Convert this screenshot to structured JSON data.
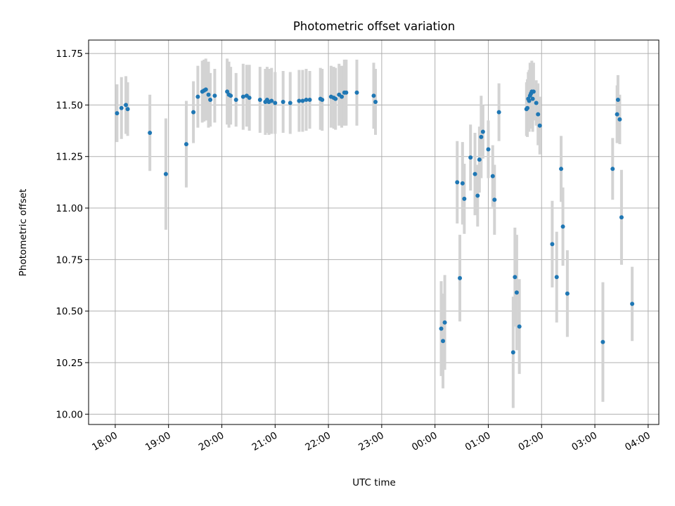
{
  "chart_data": {
    "type": "scatter",
    "title": "Photometric offset variation",
    "xlabel": "UTC time",
    "ylabel": "Photometric offset",
    "ylim": [
      9.95,
      11.815
    ],
    "xlim": [
      "17:30",
      "04:12"
    ],
    "y_ticks": [
      "10.00",
      "10.25",
      "10.50",
      "10.75",
      "11.00",
      "11.25",
      "11.50",
      "11.75"
    ],
    "x_ticks": [
      "18:00",
      "19:00",
      "20:00",
      "21:00",
      "22:00",
      "23:00",
      "00:00",
      "01:00",
      "02:00",
      "03:00",
      "04:00"
    ],
    "grid": true,
    "error_bars": true,
    "colors": {
      "points": "#1f77b4",
      "error_bars": "#d3d3d3",
      "grid": "#b0b0b0"
    },
    "points": [
      {
        "x": "18:02",
        "y": 11.46,
        "err": 0.14
      },
      {
        "x": "18:07",
        "y": 11.485,
        "err": 0.15
      },
      {
        "x": "18:12",
        "y": 11.5,
        "err": 0.14
      },
      {
        "x": "18:14",
        "y": 11.48,
        "err": 0.13
      },
      {
        "x": "18:39",
        "y": 11.365,
        "err": 0.185
      },
      {
        "x": "18:57",
        "y": 11.165,
        "err": 0.27
      },
      {
        "x": "19:20",
        "y": 11.31,
        "err": 0.21
      },
      {
        "x": "19:28",
        "y": 11.465,
        "err": 0.15
      },
      {
        "x": "19:33",
        "y": 11.54,
        "err": 0.15
      },
      {
        "x": "19:38",
        "y": 11.565,
        "err": 0.15
      },
      {
        "x": "19:40",
        "y": 11.57,
        "err": 0.15
      },
      {
        "x": "19:42",
        "y": 11.575,
        "err": 0.15
      },
      {
        "x": "19:45",
        "y": 11.55,
        "err": 0.16
      },
      {
        "x": "19:47",
        "y": 11.525,
        "err": 0.13
      },
      {
        "x": "19:52",
        "y": 11.545,
        "err": 0.13
      },
      {
        "x": "20:06",
        "y": 11.565,
        "err": 0.16
      },
      {
        "x": "20:08",
        "y": 11.55,
        "err": 0.16
      },
      {
        "x": "20:10",
        "y": 11.545,
        "err": 0.14
      },
      {
        "x": "20:16",
        "y": 11.525,
        "err": 0.13
      },
      {
        "x": "20:24",
        "y": 11.54,
        "err": 0.16
      },
      {
        "x": "20:28",
        "y": 11.545,
        "err": 0.15
      },
      {
        "x": "20:31",
        "y": 11.535,
        "err": 0.16
      },
      {
        "x": "20:43",
        "y": 11.525,
        "err": 0.16
      },
      {
        "x": "20:49",
        "y": 11.515,
        "err": 0.16
      },
      {
        "x": "20:51",
        "y": 11.525,
        "err": 0.16
      },
      {
        "x": "20:53",
        "y": 11.515,
        "err": 0.16
      },
      {
        "x": "20:56",
        "y": 11.52,
        "err": 0.16
      },
      {
        "x": "21:00",
        "y": 11.51,
        "err": 0.15
      },
      {
        "x": "21:09",
        "y": 11.515,
        "err": 0.15
      },
      {
        "x": "21:17",
        "y": 11.51,
        "err": 0.15
      },
      {
        "x": "21:27",
        "y": 11.52,
        "err": 0.15
      },
      {
        "x": "21:31",
        "y": 11.52,
        "err": 0.15
      },
      {
        "x": "21:35",
        "y": 11.525,
        "err": 0.15
      },
      {
        "x": "21:39",
        "y": 11.525,
        "err": 0.14
      },
      {
        "x": "21:51",
        "y": 11.53,
        "err": 0.15
      },
      {
        "x": "21:53",
        "y": 11.525,
        "err": 0.15
      },
      {
        "x": "22:03",
        "y": 11.54,
        "err": 0.15
      },
      {
        "x": "22:06",
        "y": 11.535,
        "err": 0.15
      },
      {
        "x": "22:08",
        "y": 11.53,
        "err": 0.15
      },
      {
        "x": "22:12",
        "y": 11.55,
        "err": 0.15
      },
      {
        "x": "22:15",
        "y": 11.54,
        "err": 0.15
      },
      {
        "x": "22:18",
        "y": 11.56,
        "err": 0.16
      },
      {
        "x": "22:20",
        "y": 11.56,
        "err": 0.16
      },
      {
        "x": "22:32",
        "y": 11.56,
        "err": 0.16
      },
      {
        "x": "22:51",
        "y": 11.545,
        "err": 0.16
      },
      {
        "x": "22:53",
        "y": 11.515,
        "err": 0.16
      },
      {
        "x": "00:07",
        "y": 10.415,
        "err": 0.23
      },
      {
        "x": "00:09",
        "y": 10.355,
        "err": 0.23
      },
      {
        "x": "00:11",
        "y": 10.445,
        "err": 0.23
      },
      {
        "x": "00:25",
        "y": 11.125,
        "err": 0.2
      },
      {
        "x": "00:28",
        "y": 10.66,
        "err": 0.21
      },
      {
        "x": "00:31",
        "y": 11.12,
        "err": 0.2
      },
      {
        "x": "00:33",
        "y": 11.045,
        "err": 0.17
      },
      {
        "x": "00:40",
        "y": 11.245,
        "err": 0.16
      },
      {
        "x": "00:45",
        "y": 11.165,
        "err": 0.2
      },
      {
        "x": "00:48",
        "y": 11.06,
        "err": 0.15
      },
      {
        "x": "00:50",
        "y": 11.235,
        "err": 0.16
      },
      {
        "x": "00:52",
        "y": 11.345,
        "err": 0.2
      },
      {
        "x": "00:54",
        "y": 11.37,
        "err": 0.13
      },
      {
        "x": "01:00",
        "y": 11.285,
        "err": 0.14
      },
      {
        "x": "01:05",
        "y": 11.155,
        "err": 0.15
      },
      {
        "x": "01:07",
        "y": 11.04,
        "err": 0.17
      },
      {
        "x": "01:12",
        "y": 11.465,
        "err": 0.14
      },
      {
        "x": "01:28",
        "y": 10.3,
        "err": 0.27
      },
      {
        "x": "01:30",
        "y": 10.665,
        "err": 0.24
      },
      {
        "x": "01:32",
        "y": 10.59,
        "err": 0.28
      },
      {
        "x": "01:35",
        "y": 10.425,
        "err": 0.23
      },
      {
        "x": "01:43",
        "y": 11.48,
        "err": 0.13
      },
      {
        "x": "01:44",
        "y": 11.485,
        "err": 0.14
      },
      {
        "x": "01:45",
        "y": 11.53,
        "err": 0.13
      },
      {
        "x": "01:46",
        "y": 11.52,
        "err": 0.15
      },
      {
        "x": "01:47",
        "y": 11.545,
        "err": 0.16
      },
      {
        "x": "01:48",
        "y": 11.555,
        "err": 0.13
      },
      {
        "x": "01:49",
        "y": 11.565,
        "err": 0.15
      },
      {
        "x": "01:50",
        "y": 11.53,
        "err": 0.16
      },
      {
        "x": "01:51",
        "y": 11.565,
        "err": 0.14
      },
      {
        "x": "01:54",
        "y": 11.51,
        "err": 0.11
      },
      {
        "x": "01:56",
        "y": 11.455,
        "err": 0.15
      },
      {
        "x": "01:58",
        "y": 11.4,
        "err": 0.14
      },
      {
        "x": "02:12",
        "y": 10.825,
        "err": 0.21
      },
      {
        "x": "02:17",
        "y": 10.665,
        "err": 0.22
      },
      {
        "x": "02:22",
        "y": 11.19,
        "err": 0.16
      },
      {
        "x": "02:24",
        "y": 10.91,
        "err": 0.19
      },
      {
        "x": "02:29",
        "y": 10.585,
        "err": 0.21
      },
      {
        "x": "03:09",
        "y": 10.35,
        "err": 0.29
      },
      {
        "x": "03:20",
        "y": 11.19,
        "err": 0.15
      },
      {
        "x": "03:25",
        "y": 11.455,
        "err": 0.14
      },
      {
        "x": "03:26",
        "y": 11.525,
        "err": 0.12
      },
      {
        "x": "03:28",
        "y": 11.43,
        "err": 0.12
      },
      {
        "x": "03:30",
        "y": 10.955,
        "err": 0.23
      },
      {
        "x": "03:42",
        "y": 10.535,
        "err": 0.18
      }
    ]
  }
}
